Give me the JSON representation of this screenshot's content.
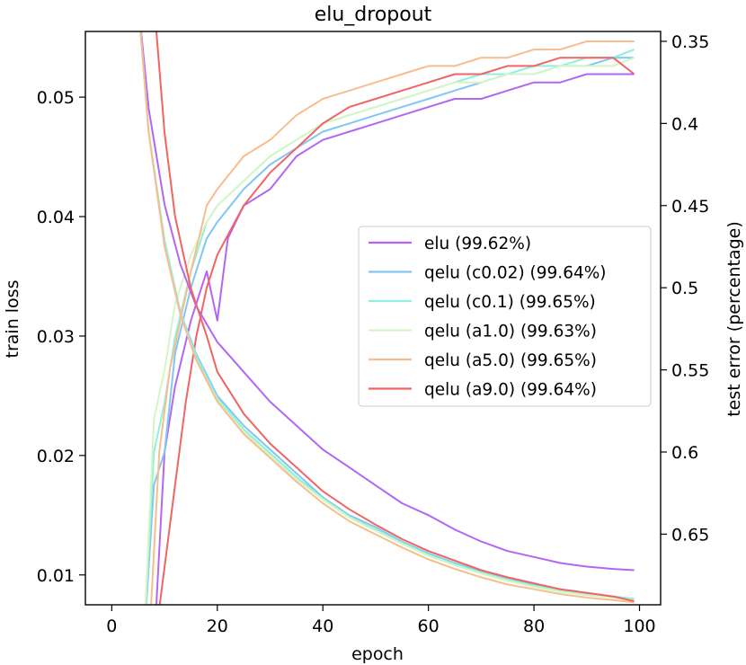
{
  "chart_data": {
    "type": "line",
    "title": "elu_dropout",
    "xlabel": "epoch",
    "ylabel_left": "train loss",
    "ylabel_right": "test error (percentage)",
    "xlim": [
      -5,
      104
    ],
    "ylim_left": [
      0.0075,
      0.0555
    ],
    "ylim_right_inverted": [
      0.693,
      0.344
    ],
    "x_ticks": [
      0,
      20,
      40,
      60,
      80,
      100
    ],
    "y_left_ticks": [
      0.01,
      0.02,
      0.03,
      0.04,
      0.05
    ],
    "y_right_ticks": [
      0.35,
      0.4,
      0.45,
      0.5,
      0.55,
      0.6,
      0.65
    ],
    "legend_position": "center-right",
    "grid": false,
    "series": [
      {
        "name": "elu (99.62%)",
        "color": "#b266f5",
        "train_loss": [
          [
            5,
            0.058
          ],
          [
            7,
            0.049
          ],
          [
            10,
            0.041
          ],
          [
            13,
            0.036
          ],
          [
            16,
            0.0325
          ],
          [
            20,
            0.0295
          ],
          [
            25,
            0.027
          ],
          [
            30,
            0.0245
          ],
          [
            35,
            0.0225
          ],
          [
            40,
            0.0205
          ],
          [
            45,
            0.019
          ],
          [
            50,
            0.0175
          ],
          [
            55,
            0.016
          ],
          [
            60,
            0.015
          ],
          [
            65,
            0.0138
          ],
          [
            70,
            0.0128
          ],
          [
            75,
            0.012
          ],
          [
            80,
            0.0115
          ],
          [
            85,
            0.011
          ],
          [
            90,
            0.0107
          ],
          [
            95,
            0.0105
          ],
          [
            99,
            0.0104
          ]
        ],
        "test_error": [
          [
            8,
            0.72
          ],
          [
            10,
            0.6
          ],
          [
            12,
            0.56
          ],
          [
            15,
            0.52
          ],
          [
            18,
            0.49
          ],
          [
            20,
            0.52
          ],
          [
            22,
            0.47
          ],
          [
            25,
            0.45
          ],
          [
            30,
            0.44
          ],
          [
            35,
            0.42
          ],
          [
            40,
            0.41
          ],
          [
            45,
            0.405
          ],
          [
            50,
            0.4
          ],
          [
            55,
            0.395
          ],
          [
            60,
            0.39
          ],
          [
            65,
            0.385
          ],
          [
            70,
            0.385
          ],
          [
            75,
            0.38
          ],
          [
            80,
            0.375
          ],
          [
            85,
            0.375
          ],
          [
            90,
            0.37
          ],
          [
            95,
            0.37
          ],
          [
            99,
            0.37
          ]
        ]
      },
      {
        "name": "qelu (c0.02) (99.64%)",
        "color": "#82c6f2",
        "train_loss": [
          [
            5,
            0.058
          ],
          [
            7,
            0.047
          ],
          [
            10,
            0.038
          ],
          [
            13,
            0.032
          ],
          [
            16,
            0.0285
          ],
          [
            20,
            0.025
          ],
          [
            25,
            0.0225
          ],
          [
            30,
            0.0205
          ],
          [
            35,
            0.0185
          ],
          [
            40,
            0.0165
          ],
          [
            45,
            0.015
          ],
          [
            50,
            0.014
          ],
          [
            55,
            0.0128
          ],
          [
            60,
            0.0118
          ],
          [
            65,
            0.011
          ],
          [
            70,
            0.0103
          ],
          [
            75,
            0.0097
          ],
          [
            80,
            0.0092
          ],
          [
            85,
            0.0088
          ],
          [
            90,
            0.0085
          ],
          [
            95,
            0.0082
          ],
          [
            99,
            0.008
          ]
        ],
        "test_error": [
          [
            6,
            0.72
          ],
          [
            8,
            0.62
          ],
          [
            10,
            0.6
          ],
          [
            12,
            0.54
          ],
          [
            15,
            0.5
          ],
          [
            18,
            0.47
          ],
          [
            20,
            0.46
          ],
          [
            25,
            0.44
          ],
          [
            30,
            0.425
          ],
          [
            35,
            0.415
          ],
          [
            40,
            0.405
          ],
          [
            45,
            0.4
          ],
          [
            50,
            0.395
          ],
          [
            55,
            0.39
          ],
          [
            60,
            0.385
          ],
          [
            65,
            0.38
          ],
          [
            70,
            0.375
          ],
          [
            75,
            0.37
          ],
          [
            80,
            0.37
          ],
          [
            85,
            0.365
          ],
          [
            90,
            0.365
          ],
          [
            95,
            0.36
          ],
          [
            99,
            0.36
          ]
        ]
      },
      {
        "name": "qelu (c0.1) (99.65%)",
        "color": "#8ef0e0",
        "train_loss": [
          [
            5,
            0.058
          ],
          [
            7,
            0.047
          ],
          [
            10,
            0.038
          ],
          [
            13,
            0.032
          ],
          [
            16,
            0.0283
          ],
          [
            20,
            0.0248
          ],
          [
            25,
            0.0222
          ],
          [
            30,
            0.0202
          ],
          [
            35,
            0.0182
          ],
          [
            40,
            0.0164
          ],
          [
            45,
            0.0149
          ],
          [
            50,
            0.0138
          ],
          [
            55,
            0.0127
          ],
          [
            60,
            0.0117
          ],
          [
            65,
            0.0109
          ],
          [
            70,
            0.0102
          ],
          [
            75,
            0.0096
          ],
          [
            80,
            0.0091
          ],
          [
            85,
            0.0087
          ],
          [
            90,
            0.0084
          ],
          [
            95,
            0.0082
          ],
          [
            99,
            0.008
          ]
        ],
        "test_error": [
          [
            6,
            0.72
          ],
          [
            8,
            0.6
          ],
          [
            10,
            0.57
          ],
          [
            12,
            0.53
          ],
          [
            15,
            0.49
          ],
          [
            18,
            0.46
          ],
          [
            20,
            0.45
          ],
          [
            25,
            0.435
          ],
          [
            30,
            0.42
          ],
          [
            35,
            0.41
          ],
          [
            40,
            0.4
          ],
          [
            45,
            0.395
          ],
          [
            50,
            0.39
          ],
          [
            55,
            0.385
          ],
          [
            60,
            0.38
          ],
          [
            65,
            0.375
          ],
          [
            70,
            0.37
          ],
          [
            75,
            0.37
          ],
          [
            80,
            0.365
          ],
          [
            85,
            0.365
          ],
          [
            90,
            0.36
          ],
          [
            95,
            0.36
          ],
          [
            99,
            0.355
          ]
        ]
      },
      {
        "name": "qelu (a1.0) (99.63%)",
        "color": "#d6f5c4",
        "train_loss": [
          [
            5,
            0.058
          ],
          [
            7,
            0.047
          ],
          [
            10,
            0.0375
          ],
          [
            13,
            0.0318
          ],
          [
            16,
            0.028
          ],
          [
            20,
            0.0246
          ],
          [
            25,
            0.022
          ],
          [
            30,
            0.02
          ],
          [
            35,
            0.018
          ],
          [
            40,
            0.0163
          ],
          [
            45,
            0.0148
          ],
          [
            50,
            0.0137
          ],
          [
            55,
            0.0126
          ],
          [
            60,
            0.0116
          ],
          [
            65,
            0.0108
          ],
          [
            70,
            0.0101
          ],
          [
            75,
            0.0095
          ],
          [
            80,
            0.009
          ],
          [
            85,
            0.0086
          ],
          [
            90,
            0.0083
          ],
          [
            95,
            0.0081
          ],
          [
            99,
            0.0079
          ]
        ],
        "test_error": [
          [
            6,
            0.72
          ],
          [
            8,
            0.58
          ],
          [
            10,
            0.55
          ],
          [
            12,
            0.51
          ],
          [
            15,
            0.48
          ],
          [
            18,
            0.46
          ],
          [
            20,
            0.45
          ],
          [
            25,
            0.435
          ],
          [
            30,
            0.42
          ],
          [
            35,
            0.41
          ],
          [
            40,
            0.4
          ],
          [
            45,
            0.395
          ],
          [
            50,
            0.39
          ],
          [
            55,
            0.385
          ],
          [
            60,
            0.38
          ],
          [
            65,
            0.375
          ],
          [
            70,
            0.375
          ],
          [
            75,
            0.37
          ],
          [
            80,
            0.37
          ],
          [
            85,
            0.365
          ],
          [
            90,
            0.365
          ],
          [
            95,
            0.365
          ],
          [
            99,
            0.36
          ]
        ]
      },
      {
        "name": "qelu (a5.0) (99.65%)",
        "color": "#f7bd8e",
        "train_loss": [
          [
            5,
            0.058
          ],
          [
            7,
            0.047
          ],
          [
            10,
            0.0375
          ],
          [
            13,
            0.0318
          ],
          [
            16,
            0.028
          ],
          [
            20,
            0.0245
          ],
          [
            25,
            0.0218
          ],
          [
            30,
            0.0198
          ],
          [
            35,
            0.0178
          ],
          [
            40,
            0.016
          ],
          [
            45,
            0.0145
          ],
          [
            50,
            0.0134
          ],
          [
            55,
            0.0123
          ],
          [
            60,
            0.0113
          ],
          [
            65,
            0.0105
          ],
          [
            70,
            0.0098
          ],
          [
            75,
            0.0092
          ],
          [
            80,
            0.0088
          ],
          [
            85,
            0.0084
          ],
          [
            90,
            0.0081
          ],
          [
            95,
            0.0079
          ],
          [
            99,
            0.0077
          ]
        ],
        "test_error": [
          [
            7,
            0.72
          ],
          [
            9,
            0.6
          ],
          [
            11,
            0.55
          ],
          [
            13,
            0.52
          ],
          [
            15,
            0.49
          ],
          [
            18,
            0.45
          ],
          [
            20,
            0.44
          ],
          [
            25,
            0.42
          ],
          [
            30,
            0.41
          ],
          [
            35,
            0.395
          ],
          [
            40,
            0.385
          ],
          [
            45,
            0.38
          ],
          [
            50,
            0.375
          ],
          [
            55,
            0.37
          ],
          [
            60,
            0.365
          ],
          [
            65,
            0.365
          ],
          [
            70,
            0.36
          ],
          [
            75,
            0.36
          ],
          [
            80,
            0.355
          ],
          [
            85,
            0.355
          ],
          [
            90,
            0.35
          ],
          [
            95,
            0.35
          ],
          [
            99,
            0.35
          ]
        ]
      },
      {
        "name": "qelu (a9.0) (99.64%)",
        "color": "#f06464",
        "train_loss": [
          [
            8,
            0.058
          ],
          [
            10,
            0.047
          ],
          [
            12,
            0.04
          ],
          [
            15,
            0.034
          ],
          [
            18,
            0.03
          ],
          [
            20,
            0.027
          ],
          [
            25,
            0.0235
          ],
          [
            30,
            0.021
          ],
          [
            35,
            0.019
          ],
          [
            40,
            0.017
          ],
          [
            45,
            0.0155
          ],
          [
            50,
            0.0142
          ],
          [
            55,
            0.013
          ],
          [
            60,
            0.012
          ],
          [
            65,
            0.0112
          ],
          [
            70,
            0.0104
          ],
          [
            75,
            0.0098
          ],
          [
            80,
            0.0093
          ],
          [
            85,
            0.0088
          ],
          [
            90,
            0.0085
          ],
          [
            95,
            0.0082
          ],
          [
            99,
            0.0078
          ]
        ],
        "test_error": [
          [
            8,
            0.72
          ],
          [
            10,
            0.67
          ],
          [
            12,
            0.62
          ],
          [
            14,
            0.57
          ],
          [
            16,
            0.53
          ],
          [
            18,
            0.5
          ],
          [
            20,
            0.48
          ],
          [
            25,
            0.45
          ],
          [
            30,
            0.43
          ],
          [
            35,
            0.415
          ],
          [
            40,
            0.4
          ],
          [
            45,
            0.39
          ],
          [
            50,
            0.385
          ],
          [
            55,
            0.38
          ],
          [
            60,
            0.375
          ],
          [
            65,
            0.37
          ],
          [
            70,
            0.37
          ],
          [
            75,
            0.365
          ],
          [
            80,
            0.365
          ],
          [
            85,
            0.36
          ],
          [
            90,
            0.36
          ],
          [
            95,
            0.36
          ],
          [
            99,
            0.37
          ]
        ]
      }
    ]
  }
}
